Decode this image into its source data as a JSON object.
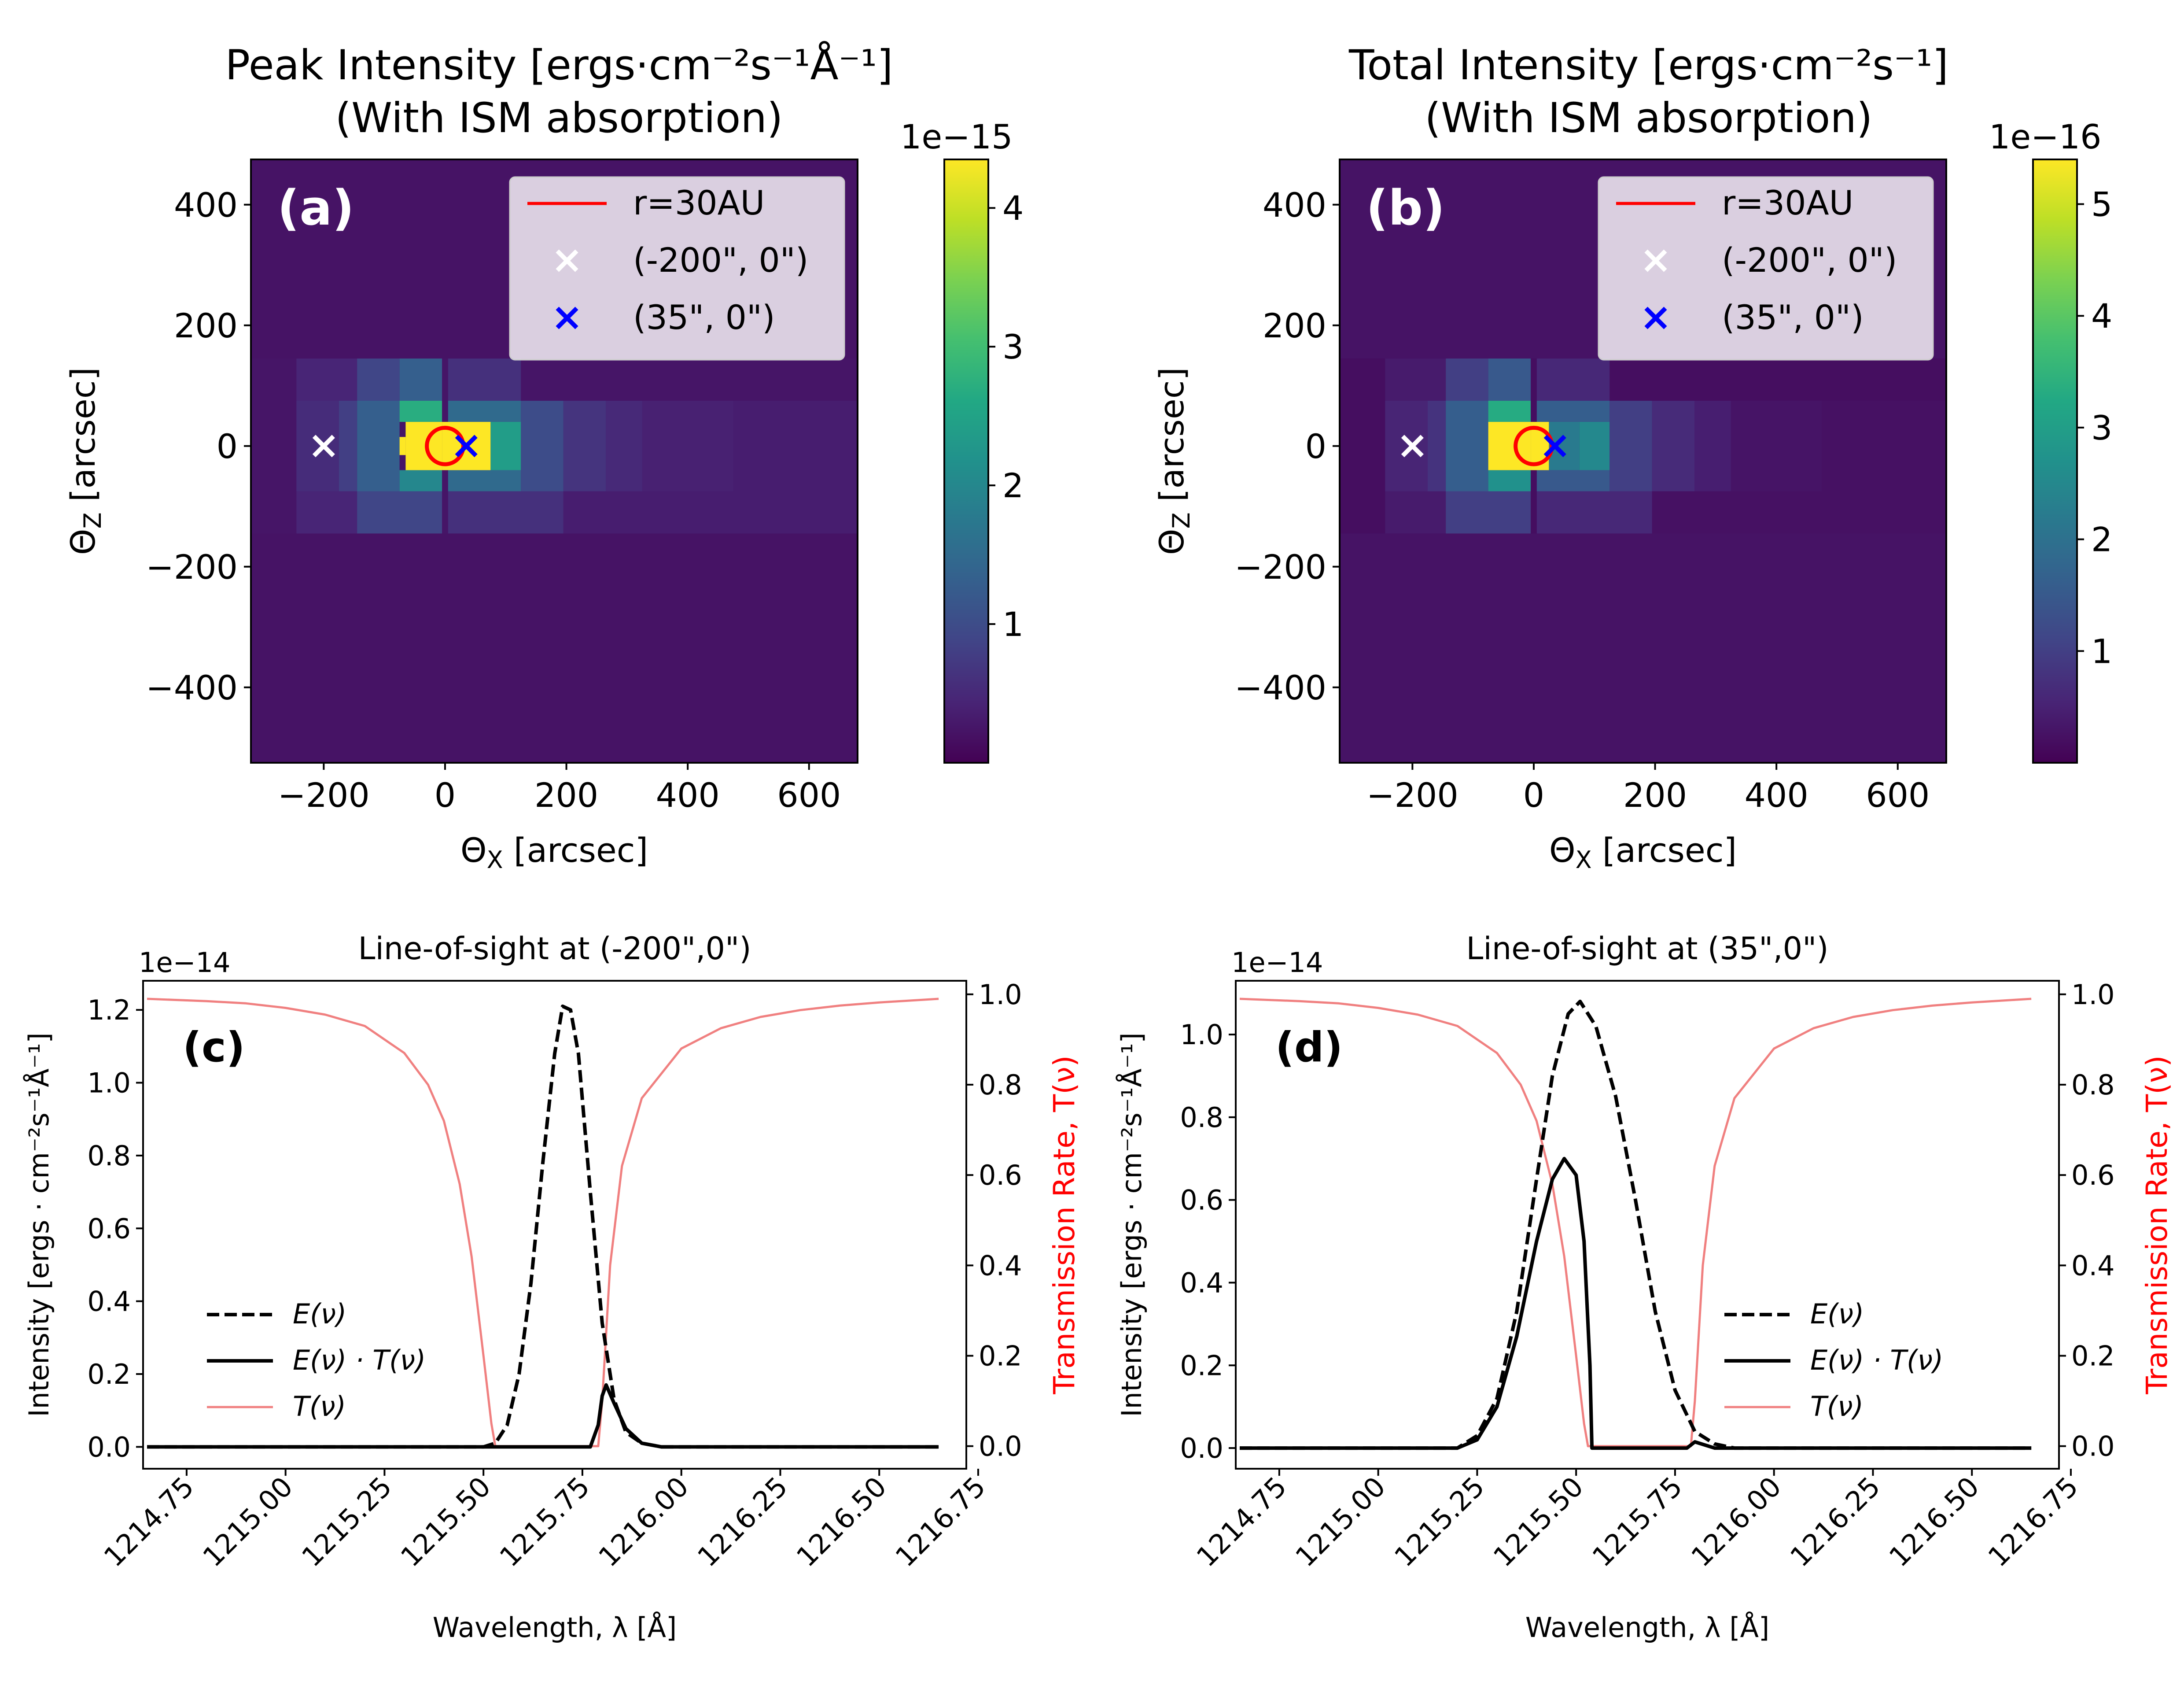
{
  "chart_data": [
    {
      "type": "heatmap",
      "panel_label": "(a)",
      "title_line1": "Peak Intensity [ergs·cm⁻²s⁻¹Å⁻¹]",
      "title_line2": "(With ISM absorption)",
      "xlabel": "Θ_X [arcsec]",
      "ylabel": "Θ_Z [arcsec]",
      "xlim": [
        -320,
        680
      ],
      "ylim": [
        -525,
        475
      ],
      "xticks": [
        -200,
        0,
        200,
        400,
        600
      ],
      "xtick_labels": [
        "−200",
        "0",
        "200",
        "400",
        "600"
      ],
      "yticks": [
        400,
        200,
        0,
        -200,
        -400
      ],
      "ytick_labels": [
        "400",
        "200",
        "0",
        "−200",
        "−400"
      ],
      "colorbar": {
        "min": 0,
        "max": 4.35,
        "exponent_label": "1e−15",
        "ticks": [
          1,
          2,
          3,
          4
        ],
        "tick_labels": [
          "1",
          "2",
          "3",
          "4"
        ]
      },
      "legend": {
        "position": "upper right",
        "entries": [
          "r=30AU",
          "(-200\", 0\")",
          "(35\", 0\")"
        ]
      },
      "markers": [
        {
          "x": -200,
          "z": 0,
          "color": "#ffffff"
        },
        {
          "x": 35,
          "z": 0,
          "color": "#0000ff"
        }
      ],
      "circle": {
        "x": 0,
        "z": 0,
        "radius_arcsec": 30,
        "color": "#ff0000"
      },
      "cells": [
        {
          "x0": -65,
          "x1": -5,
          "z0": -40,
          "z1": 40,
          "v": 4.35
        },
        {
          "x0": -5,
          "x1": 75,
          "z0": -40,
          "z1": 40,
          "v": 4.35
        },
        {
          "x0": -75,
          "x1": -65,
          "z0": -15,
          "z1": 15,
          "v": 4.35
        },
        {
          "x0": -75,
          "x1": -5,
          "z0": 40,
          "z1": 75,
          "v": 2.7
        },
        {
          "x0": -75,
          "x1": -5,
          "z0": -75,
          "z1": -40,
          "v": 2.0
        },
        {
          "x0": 75,
          "x1": 125,
          "z0": -40,
          "z1": 40,
          "v": 2.4
        },
        {
          "x0": 5,
          "x1": 125,
          "z0": 40,
          "z1": 75,
          "v": 1.5
        },
        {
          "x0": 5,
          "x1": 125,
          "z0": -75,
          "z1": -40,
          "v": 1.5
        },
        {
          "x0": -145,
          "x1": -75,
          "z0": -75,
          "z1": 75,
          "v": 1.3
        },
        {
          "x0": -175,
          "x1": -145,
          "z0": -75,
          "z1": 75,
          "v": 0.8
        },
        {
          "x0": -245,
          "x1": -175,
          "z0": -75,
          "z1": 75,
          "v": 0.55
        },
        {
          "x0": -145,
          "x1": -75,
          "z0": 75,
          "z1": 145,
          "v": 0.9
        },
        {
          "x0": -75,
          "x1": -5,
          "z0": 75,
          "z1": 145,
          "v": 1.3
        },
        {
          "x0": -145,
          "x1": -5,
          "z0": -145,
          "z1": -75,
          "v": 0.9
        },
        {
          "x0": 125,
          "x1": 195,
          "z0": -75,
          "z1": 75,
          "v": 1.0
        },
        {
          "x0": 195,
          "x1": 265,
          "z0": -75,
          "z1": 75,
          "v": 0.65
        },
        {
          "x0": 265,
          "x1": 325,
          "z0": -75,
          "z1": 75,
          "v": 0.5
        },
        {
          "x0": 5,
          "x1": 125,
          "z0": 75,
          "z1": 145,
          "v": 0.6
        },
        {
          "x0": 5,
          "x1": 195,
          "z0": -145,
          "z1": -75,
          "v": 0.6
        },
        {
          "x0": -245,
          "x1": -145,
          "z0": 75,
          "z1": 145,
          "v": 0.45
        },
        {
          "x0": -245,
          "x1": -145,
          "z0": -145,
          "z1": -75,
          "v": 0.45
        },
        {
          "x0": 325,
          "x1": 475,
          "z0": -75,
          "z1": 75,
          "v": 0.4
        },
        {
          "x0": 475,
          "x1": 680,
          "z0": -75,
          "z1": 75,
          "v": 0.3
        },
        {
          "x0": 195,
          "x1": 680,
          "z0": -145,
          "z1": 75,
          "v": 0.35
        },
        {
          "x0": -320,
          "x1": 680,
          "z0": -145,
          "z1": 145,
          "v": 0.25
        }
      ]
    },
    {
      "type": "heatmap",
      "panel_label": "(b)",
      "title_line1": "Total Intensity [ergs·cm⁻²s⁻¹]",
      "title_line2": "(With ISM absorption)",
      "xlabel": "Θ_X [arcsec]",
      "ylabel": "Θ_Z [arcsec]",
      "xlim": [
        -320,
        680
      ],
      "ylim": [
        -525,
        475
      ],
      "xticks": [
        -200,
        0,
        200,
        400,
        600
      ],
      "xtick_labels": [
        "−200",
        "0",
        "200",
        "400",
        "600"
      ],
      "yticks": [
        400,
        200,
        0,
        -200,
        -400
      ],
      "ytick_labels": [
        "400",
        "200",
        "0",
        "−200",
        "−400"
      ],
      "colorbar": {
        "min": 0,
        "max": 5.4,
        "exponent_label": "1e−16",
        "ticks": [
          1,
          2,
          3,
          4,
          5
        ],
        "tick_labels": [
          "1",
          "2",
          "3",
          "4",
          "5"
        ]
      },
      "legend": {
        "position": "upper right",
        "entries": [
          "r=30AU",
          "(-200\", 0\")",
          "(35\", 0\")"
        ]
      },
      "markers": [
        {
          "x": -200,
          "z": 0,
          "color": "#ffffff"
        },
        {
          "x": 35,
          "z": 0,
          "color": "#0000ff"
        }
      ],
      "circle": {
        "x": 0,
        "z": 0,
        "radius_arcsec": 30,
        "color": "#ff0000"
      },
      "cells": [
        {
          "x0": -75,
          "x1": -5,
          "z0": -40,
          "z1": 40,
          "v": 5.4
        },
        {
          "x0": -5,
          "x1": 25,
          "z0": -40,
          "z1": 40,
          "v": 5.4
        },
        {
          "x0": 25,
          "x1": 75,
          "z0": -40,
          "z1": 40,
          "v": 2.2
        },
        {
          "x0": -75,
          "x1": -5,
          "z0": 40,
          "z1": 75,
          "v": 3.3
        },
        {
          "x0": -75,
          "x1": -5,
          "z0": -75,
          "z1": -40,
          "v": 2.7
        },
        {
          "x0": 75,
          "x1": 125,
          "z0": -40,
          "z1": 40,
          "v": 2.5
        },
        {
          "x0": 5,
          "x1": 125,
          "z0": 40,
          "z1": 75,
          "v": 1.6
        },
        {
          "x0": 5,
          "x1": 125,
          "z0": -75,
          "z1": -40,
          "v": 1.5
        },
        {
          "x0": -145,
          "x1": -75,
          "z0": -75,
          "z1": 75,
          "v": 1.6
        },
        {
          "x0": -175,
          "x1": -145,
          "z0": -75,
          "z1": 75,
          "v": 0.8
        },
        {
          "x0": -245,
          "x1": -175,
          "z0": -75,
          "z1": 75,
          "v": 0.55
        },
        {
          "x0": -145,
          "x1": -75,
          "z0": 75,
          "z1": 145,
          "v": 1.0
        },
        {
          "x0": -75,
          "x1": -5,
          "z0": 75,
          "z1": 145,
          "v": 1.5
        },
        {
          "x0": -145,
          "x1": -5,
          "z0": -145,
          "z1": -75,
          "v": 1.0
        },
        {
          "x0": 125,
          "x1": 195,
          "z0": -75,
          "z1": 75,
          "v": 1.0
        },
        {
          "x0": 195,
          "x1": 265,
          "z0": -75,
          "z1": 75,
          "v": 0.65
        },
        {
          "x0": 265,
          "x1": 325,
          "z0": -75,
          "z1": 75,
          "v": 0.45
        },
        {
          "x0": 5,
          "x1": 125,
          "z0": 75,
          "z1": 145,
          "v": 0.6
        },
        {
          "x0": 5,
          "x1": 195,
          "z0": -145,
          "z1": -75,
          "v": 0.6
        },
        {
          "x0": -245,
          "x1": -145,
          "z0": 75,
          "z1": 145,
          "v": 0.4
        },
        {
          "x0": -245,
          "x1": -145,
          "z0": -145,
          "z1": -75,
          "v": 0.4
        },
        {
          "x0": 325,
          "x1": 475,
          "z0": -75,
          "z1": 75,
          "v": 0.3
        },
        {
          "x0": 475,
          "x1": 680,
          "z0": -75,
          "z1": 75,
          "v": 0.2
        },
        {
          "x0": 195,
          "x1": 680,
          "z0": -145,
          "z1": 75,
          "v": 0.25
        },
        {
          "x0": -320,
          "x1": 680,
          "z0": -145,
          "z1": 145,
          "v": 0.2
        }
      ]
    },
    {
      "type": "line",
      "panel_label": "(c)",
      "title": "Line-of-sight at (-200\",0\")",
      "xlabel": "Wavelength, λ [Å]",
      "ylabel": "Intensity [ergs · cm⁻²s⁻¹Å⁻¹]",
      "y2label": "Transmission Rate, T(ν)",
      "xlim": [
        1214.64,
        1216.72
      ],
      "ylim": [
        -0.06,
        1.28
      ],
      "y2lim": [
        -0.05,
        1.03
      ],
      "y_exponent_label": "1e−14",
      "xticks": [
        1214.75,
        1215.0,
        1215.25,
        1215.5,
        1215.75,
        1216.0,
        1216.25,
        1216.5,
        1216.75
      ],
      "xtick_labels": [
        "1214.75",
        "1215.00",
        "1215.25",
        "1215.50",
        "1215.75",
        "1216.00",
        "1216.25",
        "1216.50",
        "1216.75"
      ],
      "yticks": [
        0.0,
        0.2,
        0.4,
        0.6,
        0.8,
        1.0,
        1.2
      ],
      "ytick_labels": [
        "0.0",
        "0.2",
        "0.4",
        "0.6",
        "0.8",
        "1.0",
        "1.2"
      ],
      "y2ticks": [
        0.0,
        0.2,
        0.4,
        0.6,
        0.8,
        1.0
      ],
      "y2tick_labels": [
        "0.0",
        "0.2",
        "0.4",
        "0.6",
        "0.8",
        "1.0"
      ],
      "legend": {
        "position": "lower left",
        "entries": [
          "E(ν)",
          "E(ν) · T(ν)",
          "T(ν)"
        ]
      },
      "series": [
        {
          "name": "E(ν)",
          "style": "dashed",
          "color": "#000000",
          "x": [
            1214.65,
            1215.5,
            1215.53,
            1215.56,
            1215.59,
            1215.62,
            1215.65,
            1215.68,
            1215.7,
            1215.72,
            1215.74,
            1215.77,
            1215.8,
            1215.83,
            1215.86,
            1215.9,
            1215.95,
            1216.0,
            1216.65
          ],
          "y": [
            0.0,
            0.0,
            0.01,
            0.06,
            0.2,
            0.45,
            0.78,
            1.08,
            1.21,
            1.2,
            1.08,
            0.7,
            0.34,
            0.13,
            0.04,
            0.01,
            0.0,
            0.0,
            0.0
          ]
        },
        {
          "name": "E(ν) · T(ν)",
          "style": "solid",
          "color": "#000000",
          "x": [
            1214.65,
            1215.77,
            1215.79,
            1215.8,
            1215.81,
            1215.83,
            1215.86,
            1215.9,
            1215.95,
            1216.65
          ],
          "y": [
            0.0,
            0.0,
            0.06,
            0.14,
            0.17,
            0.12,
            0.05,
            0.01,
            0.0,
            0.0
          ]
        },
        {
          "name": "T(ν)",
          "style": "solid",
          "color": "#f08080",
          "axis": "right",
          "x": [
            1214.65,
            1214.8,
            1214.9,
            1215.0,
            1215.1,
            1215.2,
            1215.3,
            1215.36,
            1215.4,
            1215.44,
            1215.47,
            1215.5,
            1215.52,
            1215.53,
            1215.79,
            1215.8,
            1215.82,
            1215.85,
            1215.9,
            1216.0,
            1216.1,
            1216.2,
            1216.3,
            1216.4,
            1216.5,
            1216.65
          ],
          "y": [
            0.99,
            0.985,
            0.98,
            0.97,
            0.955,
            0.93,
            0.87,
            0.8,
            0.72,
            0.58,
            0.42,
            0.2,
            0.05,
            0.0,
            0.0,
            0.1,
            0.4,
            0.62,
            0.77,
            0.88,
            0.925,
            0.95,
            0.965,
            0.975,
            0.982,
            0.99
          ]
        }
      ]
    },
    {
      "type": "line",
      "panel_label": "(d)",
      "title": "Line-of-sight at (35\",0\")",
      "xlabel": "Wavelength, λ [Å]",
      "ylabel": "Intensity [ergs · cm⁻²s⁻¹Å⁻¹]",
      "y2label": "Transmission Rate, T(ν)",
      "xlim": [
        1214.64,
        1216.72
      ],
      "ylim": [
        -0.05,
        1.13
      ],
      "y2lim": [
        -0.05,
        1.03
      ],
      "y_exponent_label": "1e−14",
      "xticks": [
        1214.75,
        1215.0,
        1215.25,
        1215.5,
        1215.75,
        1216.0,
        1216.25,
        1216.5,
        1216.75
      ],
      "xtick_labels": [
        "1214.75",
        "1215.00",
        "1215.25",
        "1215.50",
        "1215.75",
        "1216.00",
        "1216.25",
        "1216.50",
        "1216.75"
      ],
      "yticks": [
        0.0,
        0.2,
        0.4,
        0.6,
        0.8,
        1.0
      ],
      "ytick_labels": [
        "0.0",
        "0.2",
        "0.4",
        "0.6",
        "0.8",
        "1.0"
      ],
      "y2ticks": [
        0.0,
        0.2,
        0.4,
        0.6,
        0.8,
        1.0
      ],
      "y2tick_labels": [
        "0.0",
        "0.2",
        "0.4",
        "0.6",
        "0.8",
        "1.0"
      ],
      "legend": {
        "position": "lower right",
        "entries": [
          "E(ν)",
          "E(ν) · T(ν)",
          "T(ν)"
        ]
      },
      "series": [
        {
          "name": "E(ν)",
          "style": "dashed",
          "color": "#000000",
          "x": [
            1214.65,
            1215.2,
            1215.25,
            1215.3,
            1215.35,
            1215.4,
            1215.44,
            1215.48,
            1215.51,
            1215.55,
            1215.6,
            1215.65,
            1215.7,
            1215.75,
            1215.8,
            1215.85,
            1215.9,
            1216.65
          ],
          "y": [
            0.0,
            0.0,
            0.03,
            0.12,
            0.33,
            0.65,
            0.9,
            1.05,
            1.08,
            1.02,
            0.85,
            0.6,
            0.33,
            0.14,
            0.04,
            0.01,
            0.0,
            0.0
          ]
        },
        {
          "name": "E(ν) · T(ν)",
          "style": "solid",
          "color": "#000000",
          "x": [
            1214.65,
            1215.2,
            1215.25,
            1215.3,
            1215.35,
            1215.4,
            1215.44,
            1215.47,
            1215.5,
            1215.52,
            1215.535,
            1215.54,
            1215.78,
            1215.8,
            1215.85,
            1216.65
          ],
          "y": [
            0.0,
            0.0,
            0.02,
            0.1,
            0.27,
            0.5,
            0.65,
            0.7,
            0.66,
            0.5,
            0.2,
            0.0,
            0.0,
            0.015,
            0.0,
            0.0
          ]
        },
        {
          "name": "T(ν)",
          "style": "solid",
          "color": "#f08080",
          "axis": "right",
          "x": [
            1214.65,
            1214.8,
            1214.9,
            1215.0,
            1215.1,
            1215.2,
            1215.3,
            1215.36,
            1215.4,
            1215.44,
            1215.47,
            1215.5,
            1215.52,
            1215.53,
            1215.79,
            1215.8,
            1215.82,
            1215.85,
            1215.9,
            1216.0,
            1216.1,
            1216.2,
            1216.3,
            1216.4,
            1216.5,
            1216.65
          ],
          "y": [
            0.99,
            0.985,
            0.98,
            0.97,
            0.955,
            0.93,
            0.87,
            0.8,
            0.72,
            0.58,
            0.42,
            0.2,
            0.05,
            0.0,
            0.0,
            0.1,
            0.4,
            0.62,
            0.77,
            0.88,
            0.925,
            0.95,
            0.965,
            0.975,
            0.982,
            0.99
          ]
        }
      ]
    }
  ]
}
